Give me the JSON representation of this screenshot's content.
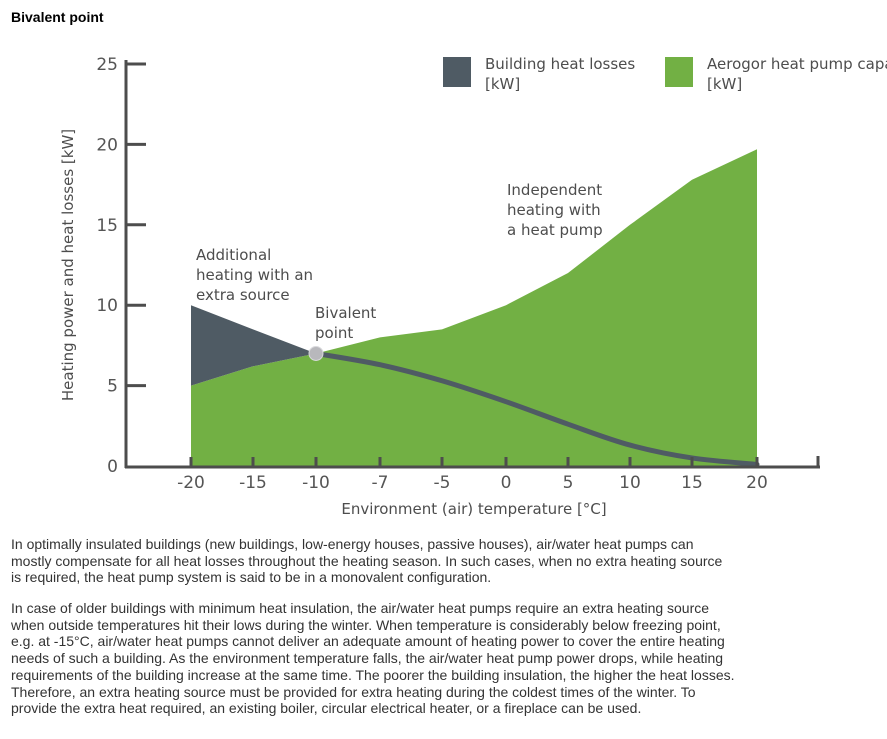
{
  "page": {
    "title": "Bivalent point",
    "paragraphs": [
      "In optimally insulated buildings (new buildings, low-energy houses, passive houses), air/water heat pumps can mostly compensate for all heat losses throughout the heating season. In such cases, when no extra heating source is required, the heat pump system is said to be in a monovalent configuration.",
      "In case of older buildings with minimum heat insulation, the air/water heat pumps require an extra heating source when outside temperatures hit their lows during the winter. When temperature is considerably below freezing point, e.g. at -15°C, air/water heat pumps cannot deliver an adequate amount of heating power to cover the entire heating needs of such a building. As the environment temperature falls, the air/water heat pump power drops, while heating requirements of the building increase at the same time. The poorer the building insulation, the higher the heat losses. Therefore, an extra heating source must be provided for extra heating during the coldest times of the winter. To provide the extra heat required, an existing boiler, circular electrical heater, or a fireplace can be used."
    ]
  },
  "chart_data": {
    "type": "area",
    "xlabel": "Environment (air) temperature [°C]",
    "ylabel": "Heating power and heat losses [kW]",
    "xticks": [
      -20,
      -15,
      -10,
      -7,
      -5,
      0,
      5,
      10,
      15,
      20
    ],
    "yticks": [
      0,
      5,
      10,
      15,
      20,
      25
    ],
    "ylim": [
      0,
      25
    ],
    "legend_position": "top-right",
    "series": [
      {
        "name": "Building heat losses [kW]",
        "color": "#4f5b64",
        "x": [
          -20,
          -15,
          -10,
          -7,
          -5,
          0,
          5,
          10,
          15,
          20
        ],
        "values": [
          10,
          8.5,
          7,
          6.3,
          5.3,
          4,
          2.6,
          1.3,
          0.5,
          0.1
        ]
      },
      {
        "name": "Aerogor heat pump capacity [kW]",
        "color": "#72b044",
        "x": [
          -20,
          -15,
          -10,
          -7,
          -5,
          0,
          5,
          10,
          15,
          20
        ],
        "values": [
          5,
          6.2,
          7,
          8,
          8.5,
          10,
          12,
          15,
          17.8,
          19.7
        ]
      }
    ],
    "bivalent_point": {
      "x": -10,
      "y": 7,
      "color": "#b8b8bc"
    },
    "annotations": [
      {
        "lines": [
          "Additional",
          "heating with an",
          "extra source"
        ]
      },
      {
        "lines": [
          "Bivalent",
          "point"
        ]
      },
      {
        "lines": [
          "Independent",
          "heating with",
          "a heat pump"
        ]
      }
    ]
  }
}
